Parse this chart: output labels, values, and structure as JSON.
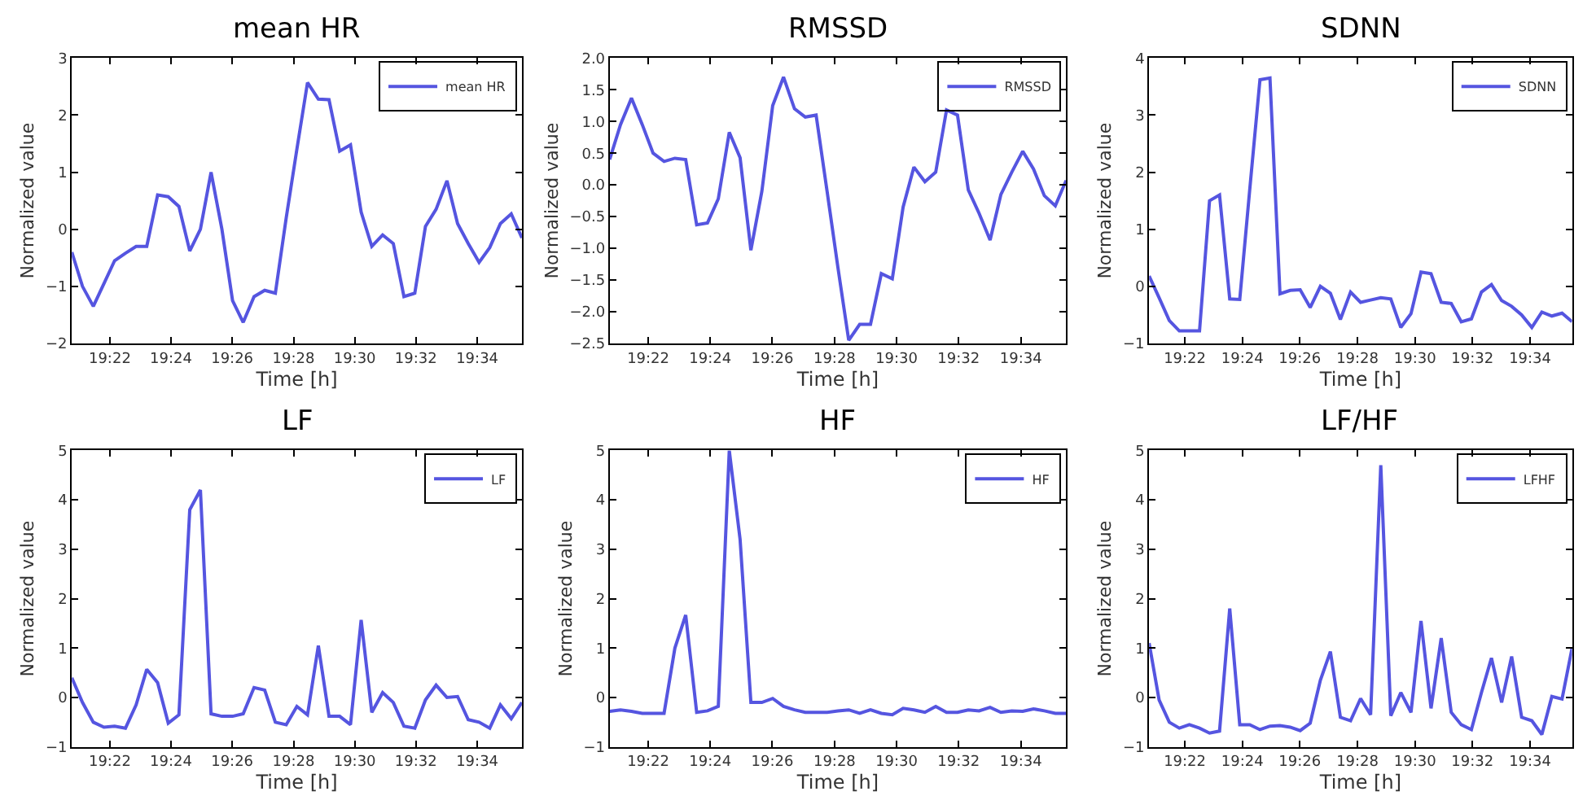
{
  "chart_data": [
    {
      "type": "line",
      "title": "mean HR",
      "xlabel": "Time [h]",
      "ylabel": "Normalized value",
      "legend": "top right",
      "x": [
        19.346,
        19.3518,
        19.3577,
        19.3635,
        19.3693,
        19.3752,
        19.381,
        19.3868,
        19.3927,
        19.3985,
        19.4043,
        19.4102,
        19.416,
        19.4218,
        19.4277,
        19.4335,
        19.4393,
        19.4452,
        19.451,
        19.4568,
        19.4627,
        19.4685,
        19.4743,
        19.4802,
        19.486,
        19.4918,
        19.4977,
        19.5035,
        19.5093,
        19.5152,
        19.521,
        19.5268,
        19.5327,
        19.5385,
        19.5443,
        19.5502,
        19.556,
        19.5618,
        19.5677,
        19.5735,
        19.5793,
        19.5852,
        19.591
      ],
      "xlim": [
        19.346,
        19.591
      ],
      "xticks": [
        {
          "value": 19.3667,
          "label": "19:22"
        },
        {
          "value": 19.4,
          "label": "19:24"
        },
        {
          "value": 19.4333,
          "label": "19:26"
        },
        {
          "value": 19.4667,
          "label": "19:28"
        },
        {
          "value": 19.5,
          "label": "19:30"
        },
        {
          "value": 19.5333,
          "label": "19:32"
        },
        {
          "value": 19.5667,
          "label": "19:34"
        }
      ],
      "ylim": [
        -2,
        3
      ],
      "yticks": [
        {
          "value": -2,
          "label": "−2"
        },
        {
          "value": -1,
          "label": "−1"
        },
        0,
        1,
        2,
        3
      ],
      "series": [
        {
          "name": "mean HR",
          "color": "#5555e0",
          "values": [
            -0.4,
            -1.0,
            -1.35,
            -0.95,
            -0.55,
            -0.42,
            -0.3,
            -0.3,
            0.6,
            0.57,
            0.4,
            -0.38,
            0.0,
            1.0,
            0.0,
            -1.25,
            -1.63,
            -1.18,
            -1.07,
            -1.12,
            0.2,
            1.4,
            2.57,
            2.28,
            2.27,
            1.37,
            1.48,
            0.3,
            -0.3,
            -0.1,
            -0.25,
            -1.18,
            -1.12,
            0.05,
            0.35,
            0.85,
            0.1,
            -0.25,
            -0.58,
            -0.32,
            0.1,
            0.27,
            -0.15
          ]
        }
      ]
    },
    {
      "type": "line",
      "title": "RMSSD",
      "xlabel": "Time [h]",
      "ylabel": "Normalized value",
      "legend": "top right",
      "x": [
        19.346,
        19.3518,
        19.3577,
        19.3635,
        19.3693,
        19.3752,
        19.381,
        19.3868,
        19.3927,
        19.3985,
        19.4043,
        19.4102,
        19.416,
        19.4218,
        19.4277,
        19.4335,
        19.4393,
        19.4452,
        19.451,
        19.4568,
        19.4627,
        19.4685,
        19.4743,
        19.4802,
        19.486,
        19.4918,
        19.4977,
        19.5035,
        19.5093,
        19.5152,
        19.521,
        19.5268,
        19.5327,
        19.5385,
        19.5443,
        19.5502,
        19.556,
        19.5618,
        19.5677,
        19.5735,
        19.5793,
        19.5852,
        19.591
      ],
      "xlim": [
        19.346,
        19.591
      ],
      "xticks": [
        {
          "value": 19.3667,
          "label": "19:22"
        },
        {
          "value": 19.4,
          "label": "19:24"
        },
        {
          "value": 19.4333,
          "label": "19:26"
        },
        {
          "value": 19.4667,
          "label": "19:28"
        },
        {
          "value": 19.5,
          "label": "19:30"
        },
        {
          "value": 19.5333,
          "label": "19:32"
        },
        {
          "value": 19.5667,
          "label": "19:34"
        }
      ],
      "ylim": [
        -2.5,
        2.0
      ],
      "yticks": [
        {
          "value": -2.5,
          "label": "−2.5"
        },
        {
          "value": -2.0,
          "label": "−2.0"
        },
        {
          "value": -1.5,
          "label": "−1.5"
        },
        {
          "value": -1.0,
          "label": "−1.0"
        },
        {
          "value": -0.5,
          "label": "−0.5"
        },
        {
          "value": 0,
          "label": "0.0"
        },
        0.5,
        {
          "value": 1,
          "label": "1.0"
        },
        1.5,
        {
          "value": 2,
          "label": "2.0"
        }
      ],
      "series": [
        {
          "name": "RMSSD",
          "color": "#5555e0",
          "values": [
            0.4,
            0.95,
            1.37,
            0.95,
            0.5,
            0.37,
            0.42,
            0.4,
            -0.63,
            -0.6,
            -0.22,
            0.83,
            0.43,
            -1.03,
            -0.1,
            1.25,
            1.7,
            1.2,
            1.07,
            1.1,
            -0.1,
            -1.3,
            -2.45,
            -2.2,
            -2.2,
            -1.4,
            -1.48,
            -0.35,
            0.28,
            0.05,
            0.2,
            1.18,
            1.1,
            -0.08,
            -0.45,
            -0.87,
            -0.15,
            0.2,
            0.53,
            0.25,
            -0.17,
            -0.33,
            0.07
          ]
        }
      ]
    },
    {
      "type": "line",
      "title": "SDNN",
      "xlabel": "Time [h]",
      "ylabel": "Normalized value",
      "legend": "top right",
      "x": [
        19.346,
        19.3518,
        19.3577,
        19.3635,
        19.3693,
        19.3752,
        19.381,
        19.3868,
        19.3927,
        19.3985,
        19.4043,
        19.4102,
        19.416,
        19.4218,
        19.4277,
        19.4335,
        19.4393,
        19.4452,
        19.451,
        19.4568,
        19.4627,
        19.4685,
        19.4743,
        19.4802,
        19.486,
        19.4918,
        19.4977,
        19.5035,
        19.5093,
        19.5152,
        19.521,
        19.5268,
        19.5327,
        19.5385,
        19.5443,
        19.5502,
        19.556,
        19.5618,
        19.5677,
        19.5735,
        19.5793,
        19.5852,
        19.591
      ],
      "xlim": [
        19.346,
        19.591
      ],
      "xticks": [
        {
          "value": 19.3667,
          "label": "19:22"
        },
        {
          "value": 19.4,
          "label": "19:24"
        },
        {
          "value": 19.4333,
          "label": "19:26"
        },
        {
          "value": 19.4667,
          "label": "19:28"
        },
        {
          "value": 19.5,
          "label": "19:30"
        },
        {
          "value": 19.5333,
          "label": "19:32"
        },
        {
          "value": 19.5667,
          "label": "19:34"
        }
      ],
      "ylim": [
        -1,
        4
      ],
      "yticks": [
        {
          "value": -1,
          "label": "−1"
        },
        0,
        1,
        2,
        3,
        4
      ],
      "series": [
        {
          "name": "SDNN",
          "color": "#5555e0",
          "values": [
            0.18,
            -0.2,
            -0.6,
            -0.78,
            -0.78,
            -0.78,
            1.5,
            1.6,
            -0.22,
            -0.23,
            1.7,
            3.62,
            3.65,
            -0.13,
            -0.07,
            -0.06,
            -0.37,
            0.0,
            -0.12,
            -0.58,
            -0.1,
            -0.28,
            -0.24,
            -0.2,
            -0.22,
            -0.72,
            -0.48,
            0.25,
            0.22,
            -0.28,
            -0.3,
            -0.62,
            -0.57,
            -0.1,
            0.03,
            -0.25,
            -0.35,
            -0.5,
            -0.72,
            -0.45,
            -0.52,
            -0.47,
            -0.62
          ]
        }
      ]
    },
    {
      "type": "line",
      "title": "LF",
      "xlabel": "Time [h]",
      "ylabel": "Normalized value",
      "legend": "top right",
      "x": [
        19.346,
        19.3518,
        19.3577,
        19.3635,
        19.3693,
        19.3752,
        19.381,
        19.3868,
        19.3927,
        19.3985,
        19.4043,
        19.4102,
        19.416,
        19.4218,
        19.4277,
        19.4335,
        19.4393,
        19.4452,
        19.451,
        19.4568,
        19.4627,
        19.4685,
        19.4743,
        19.4802,
        19.486,
        19.4918,
        19.4977,
        19.5035,
        19.5093,
        19.5152,
        19.521,
        19.5268,
        19.5327,
        19.5385,
        19.5443,
        19.5502,
        19.556,
        19.5618,
        19.5677,
        19.5735,
        19.5793,
        19.5852,
        19.591
      ],
      "xlim": [
        19.346,
        19.591
      ],
      "xticks": [
        {
          "value": 19.3667,
          "label": "19:22"
        },
        {
          "value": 19.4,
          "label": "19:24"
        },
        {
          "value": 19.4333,
          "label": "19:26"
        },
        {
          "value": 19.4667,
          "label": "19:28"
        },
        {
          "value": 19.5,
          "label": "19:30"
        },
        {
          "value": 19.5333,
          "label": "19:32"
        },
        {
          "value": 19.5667,
          "label": "19:34"
        }
      ],
      "ylim": [
        -1,
        5
      ],
      "yticks": [
        {
          "value": -1,
          "label": "−1"
        },
        0,
        1,
        2,
        3,
        4,
        5
      ],
      "series": [
        {
          "name": "LF",
          "color": "#5555e0",
          "values": [
            0.4,
            -0.1,
            -0.5,
            -0.6,
            -0.58,
            -0.62,
            -0.15,
            0.57,
            0.3,
            -0.52,
            -0.35,
            3.8,
            4.2,
            -0.33,
            -0.38,
            -0.38,
            -0.33,
            0.2,
            0.15,
            -0.5,
            -0.55,
            -0.18,
            -0.35,
            1.05,
            -0.38,
            -0.38,
            -0.55,
            1.57,
            -0.3,
            0.1,
            -0.1,
            -0.58,
            -0.62,
            -0.05,
            0.25,
            0.0,
            0.02,
            -0.45,
            -0.5,
            -0.62,
            -0.15,
            -0.43,
            -0.1
          ]
        }
      ]
    },
    {
      "type": "line",
      "title": "HF",
      "xlabel": "Time [h]",
      "ylabel": "Normalized value",
      "legend": "top right",
      "x": [
        19.346,
        19.3518,
        19.3577,
        19.3635,
        19.3693,
        19.3752,
        19.381,
        19.3868,
        19.3927,
        19.3985,
        19.4043,
        19.4102,
        19.416,
        19.4218,
        19.4277,
        19.4335,
        19.4393,
        19.4452,
        19.451,
        19.4568,
        19.4627,
        19.4685,
        19.4743,
        19.4802,
        19.486,
        19.4918,
        19.4977,
        19.5035,
        19.5093,
        19.5152,
        19.521,
        19.5268,
        19.5327,
        19.5385,
        19.5443,
        19.5502,
        19.556,
        19.5618,
        19.5677,
        19.5735,
        19.5793,
        19.5852,
        19.591
      ],
      "xlim": [
        19.346,
        19.591
      ],
      "xticks": [
        {
          "value": 19.3667,
          "label": "19:22"
        },
        {
          "value": 19.4,
          "label": "19:24"
        },
        {
          "value": 19.4333,
          "label": "19:26"
        },
        {
          "value": 19.4667,
          "label": "19:28"
        },
        {
          "value": 19.5,
          "label": "19:30"
        },
        {
          "value": 19.5333,
          "label": "19:32"
        },
        {
          "value": 19.5667,
          "label": "19:34"
        }
      ],
      "ylim": [
        -1,
        5
      ],
      "yticks": [
        {
          "value": -1,
          "label": "−1"
        },
        0,
        1,
        2,
        3,
        4,
        5
      ],
      "series": [
        {
          "name": "HF",
          "color": "#5555e0",
          "values": [
            -0.28,
            -0.25,
            -0.28,
            -0.32,
            -0.32,
            -0.32,
            1.0,
            1.67,
            -0.3,
            -0.27,
            -0.18,
            5.0,
            3.2,
            -0.1,
            -0.1,
            -0.02,
            -0.18,
            -0.25,
            -0.3,
            -0.3,
            -0.3,
            -0.27,
            -0.25,
            -0.32,
            -0.25,
            -0.32,
            -0.35,
            -0.22,
            -0.25,
            -0.3,
            -0.18,
            -0.3,
            -0.3,
            -0.25,
            -0.27,
            -0.2,
            -0.3,
            -0.27,
            -0.28,
            -0.23,
            -0.27,
            -0.32,
            -0.32
          ]
        }
      ]
    },
    {
      "type": "line",
      "title": "LF/HF",
      "xlabel": "Time [h]",
      "ylabel": "Normalized value",
      "legend": "top right",
      "x": [
        19.346,
        19.3518,
        19.3577,
        19.3635,
        19.3693,
        19.3752,
        19.381,
        19.3868,
        19.3927,
        19.3985,
        19.4043,
        19.4102,
        19.416,
        19.4218,
        19.4277,
        19.4335,
        19.4393,
        19.4452,
        19.451,
        19.4568,
        19.4627,
        19.4685,
        19.4743,
        19.4802,
        19.486,
        19.4918,
        19.4977,
        19.5035,
        19.5093,
        19.5152,
        19.521,
        19.5268,
        19.5327,
        19.5385,
        19.5443,
        19.5502,
        19.556,
        19.5618,
        19.5677,
        19.5735,
        19.5793,
        19.5852,
        19.591
      ],
      "xlim": [
        19.346,
        19.591
      ],
      "xticks": [
        {
          "value": 19.3667,
          "label": "19:22"
        },
        {
          "value": 19.4,
          "label": "19:24"
        },
        {
          "value": 19.4333,
          "label": "19:26"
        },
        {
          "value": 19.4667,
          "label": "19:28"
        },
        {
          "value": 19.5,
          "label": "19:30"
        },
        {
          "value": 19.5333,
          "label": "19:32"
        },
        {
          "value": 19.5667,
          "label": "19:34"
        }
      ],
      "ylim": [
        -1,
        5
      ],
      "yticks": [
        {
          "value": -1,
          "label": "−1"
        },
        0,
        1,
        2,
        3,
        4,
        5
      ],
      "series": [
        {
          "name": "LFHF",
          "color": "#5555e0",
          "values": [
            1.1,
            -0.05,
            -0.5,
            -0.62,
            -0.55,
            -0.62,
            -0.72,
            -0.68,
            1.8,
            -0.55,
            -0.55,
            -0.65,
            -0.58,
            -0.57,
            -0.6,
            -0.67,
            -0.52,
            0.35,
            0.93,
            -0.4,
            -0.47,
            -0.02,
            -0.35,
            4.7,
            -0.37,
            0.1,
            -0.3,
            1.55,
            -0.22,
            1.2,
            -0.3,
            -0.55,
            -0.65,
            0.1,
            0.8,
            -0.1,
            0.83,
            -0.4,
            -0.47,
            -0.75,
            0.02,
            -0.03,
            1.0
          ]
        }
      ]
    }
  ]
}
